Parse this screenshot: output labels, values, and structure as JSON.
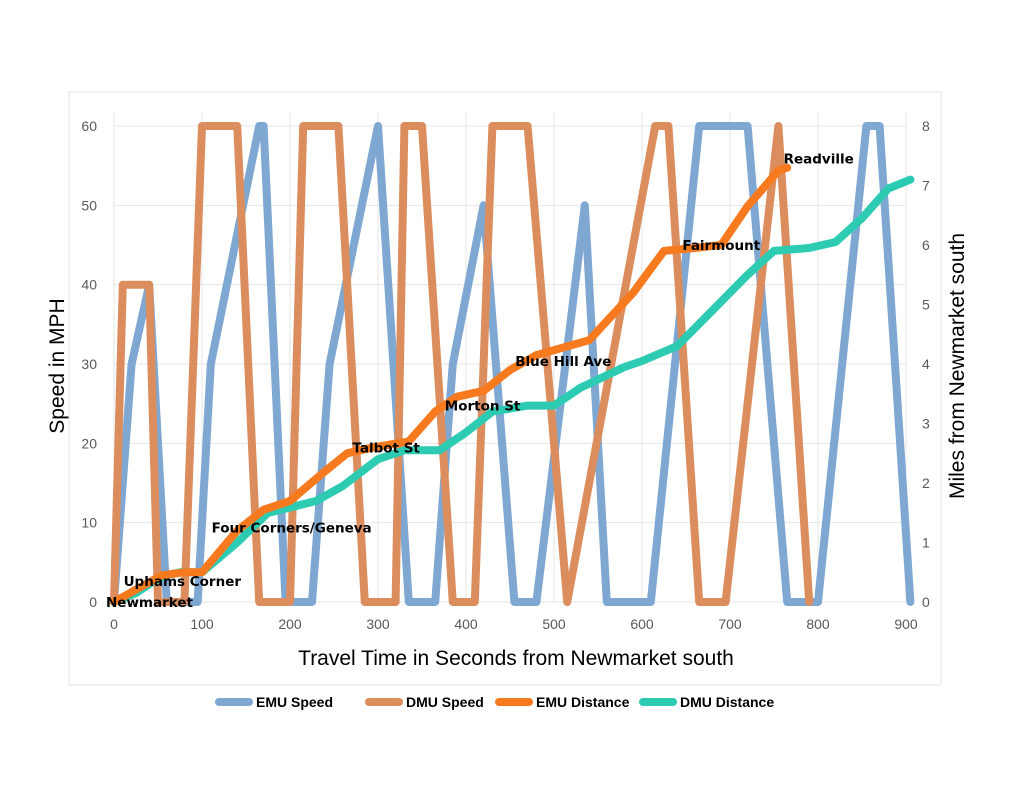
{
  "chart_data": {
    "type": "line",
    "xlabel": "Travel Time in Seconds from Newmarket south",
    "ylabel": "Speed in MPH",
    "y2label": "Miles from Newmarket south",
    "xlim": [
      0,
      900
    ],
    "ylim": [
      0,
      60
    ],
    "y2lim": [
      0,
      8
    ],
    "xticks": [
      "0",
      "100",
      "200",
      "300",
      "400",
      "500",
      "600",
      "700",
      "800",
      "900"
    ],
    "yticks": [
      "0",
      "10",
      "20",
      "30",
      "40",
      "50",
      "60"
    ],
    "y2ticks": [
      "0",
      "1",
      "2",
      "3",
      "4",
      "5",
      "6",
      "7",
      "8"
    ],
    "grid": true,
    "legend_position": "bottom",
    "series": [
      {
        "name": "EMU Speed",
        "axis": "left",
        "color": "#7ea7d2",
        "x": [
          0,
          20,
          40,
          60,
          65,
          95,
          110,
          165,
          170,
          195,
          225,
          245,
          300,
          335,
          365,
          385,
          420,
          455,
          480,
          535,
          560,
          610,
          665,
          720,
          765,
          800,
          855,
          870,
          905
        ],
        "y": [
          0,
          30,
          40,
          0,
          0,
          0,
          30,
          60,
          60,
          0,
          0,
          30,
          60,
          0,
          0,
          30,
          50,
          0,
          0,
          50,
          0,
          0,
          60,
          60,
          0,
          0,
          60,
          60,
          0
        ]
      },
      {
        "name": "DMU Speed",
        "axis": "left",
        "color": "#dc8d5d",
        "x": [
          0,
          10,
          40,
          50,
          80,
          100,
          140,
          165,
          200,
          215,
          255,
          285,
          320,
          330,
          350,
          385,
          410,
          430,
          470,
          515,
          615,
          630,
          665,
          695,
          755,
          790
        ],
        "y": [
          0,
          40,
          40,
          0,
          0,
          60,
          60,
          0,
          0,
          60,
          60,
          0,
          0,
          60,
          60,
          0,
          0,
          60,
          60,
          0,
          60,
          60,
          0,
          0,
          60,
          0
        ]
      },
      {
        "name": "EMU Distance",
        "axis": "right",
        "color": "#f77a1e",
        "x": [
          0,
          30,
          55,
          80,
          100,
          140,
          170,
          200,
          240,
          265,
          295,
          335,
          365,
          390,
          420,
          450,
          480,
          540,
          590,
          625,
          660,
          690,
          720,
          755,
          765
        ],
        "y": [
          0,
          0.25,
          0.45,
          0.5,
          0.5,
          1.2,
          1.55,
          1.7,
          2.2,
          2.5,
          2.6,
          2.7,
          3.2,
          3.45,
          3.55,
          3.9,
          4.15,
          4.4,
          5.2,
          5.9,
          5.95,
          6.0,
          6.65,
          7.25,
          7.3
        ]
      },
      {
        "name": "DMU Distance",
        "axis": "right",
        "color": "#2ccbb2",
        "x": [
          0,
          25,
          45,
          60,
          75,
          100,
          140,
          175,
          190,
          230,
          260,
          300,
          330,
          370,
          400,
          430,
          470,
          500,
          530,
          580,
          600,
          640,
          680,
          720,
          750,
          790,
          820,
          850,
          880,
          905
        ],
        "y": [
          0,
          0.15,
          0.35,
          0.45,
          0.5,
          0.5,
          1.0,
          1.5,
          1.55,
          1.7,
          1.95,
          2.4,
          2.55,
          2.55,
          2.85,
          3.2,
          3.3,
          3.3,
          3.6,
          3.95,
          4.05,
          4.3,
          4.9,
          5.5,
          5.9,
          5.95,
          6.05,
          6.45,
          6.95,
          7.1
        ]
      }
    ],
    "annotations": [
      {
        "text": "Newmarket",
        "x": 0,
        "y2": 0
      },
      {
        "text": "Uphams Corner",
        "x": 20,
        "y2": 0.35
      },
      {
        "text": "Four Corners/Geneva",
        "x": 120,
        "y2": 1.25
      },
      {
        "text": "Talbot St",
        "x": 280,
        "y2": 2.6
      },
      {
        "text": "Morton St",
        "x": 385,
        "y2": 3.3
      },
      {
        "text": "Blue Hill Ave",
        "x": 465,
        "y2": 4.05
      },
      {
        "text": "Fairmount",
        "x": 655,
        "y2": 6.0
      },
      {
        "text": "Readville",
        "x": 770,
        "y2": 7.45
      }
    ]
  }
}
